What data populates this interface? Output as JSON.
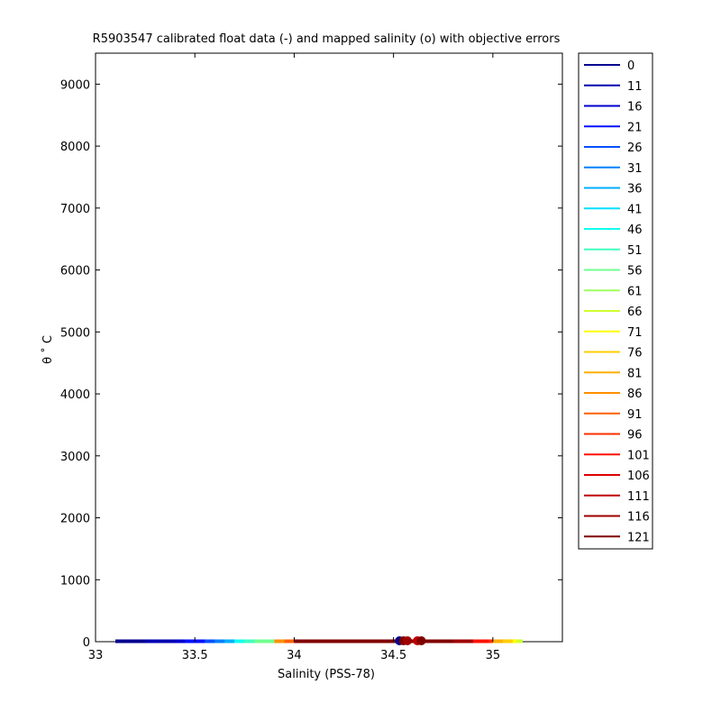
{
  "chart_data": {
    "type": "line",
    "title": "R5903547 calibrated float data (-) and mapped salinity (o) with objective errors",
    "xlabel": "Salinity (PSS-78)",
    "ylabel": "θ ˚ C",
    "xlim": [
      33.0,
      35.35
    ],
    "ylim": [
      0,
      9500
    ],
    "xticks": [
      {
        "value": 33,
        "label": "33"
      },
      {
        "value": 33.5,
        "label": "33.5"
      },
      {
        "value": 34,
        "label": "34"
      },
      {
        "value": 34.5,
        "label": "34.5"
      },
      {
        "value": 35,
        "label": "35"
      }
    ],
    "yticks": [
      {
        "value": 0,
        "label": "0"
      },
      {
        "value": 1000,
        "label": "1000"
      },
      {
        "value": 2000,
        "label": "2000"
      },
      {
        "value": 3000,
        "label": "3000"
      },
      {
        "value": 4000,
        "label": "4000"
      },
      {
        "value": 5000,
        "label": "5000"
      },
      {
        "value": 6000,
        "label": "6000"
      },
      {
        "value": 7000,
        "label": "7000"
      },
      {
        "value": 8000,
        "label": "8000"
      },
      {
        "value": 9000,
        "label": "9000"
      }
    ],
    "grid": false,
    "legend_position": "outside-right",
    "series": [
      {
        "name": "0",
        "color": "#00008f",
        "salinity_range": [
          33.1,
          33.55
        ],
        "theta": 8
      },
      {
        "name": "11",
        "color": "#0000af",
        "salinity_range": [
          33.25,
          33.6
        ],
        "theta": 8
      },
      {
        "name": "16",
        "color": "#0000cf",
        "salinity_range": [
          33.4,
          33.6
        ],
        "theta": 8
      },
      {
        "name": "21",
        "color": "#0010ff",
        "salinity_range": [
          33.45,
          33.65
        ],
        "theta": 8
      },
      {
        "name": "26",
        "color": "#0050ff",
        "salinity_range": [
          33.55,
          33.7
        ],
        "theta": 8
      },
      {
        "name": "31",
        "color": "#0080ff",
        "salinity_range": [
          33.6,
          33.8
        ],
        "theta": 8
      },
      {
        "name": "36",
        "color": "#00afff",
        "salinity_range": [
          33.65,
          33.85
        ],
        "theta": 8
      },
      {
        "name": "41",
        "color": "#00dfff",
        "salinity_range": [
          33.7,
          33.9
        ],
        "theta": 8
      },
      {
        "name": "46",
        "color": "#10ffef",
        "salinity_range": [
          33.7,
          33.92
        ],
        "theta": 8
      },
      {
        "name": "51",
        "color": "#40ffbf",
        "salinity_range": [
          33.75,
          33.95
        ],
        "theta": 8
      },
      {
        "name": "56",
        "color": "#70ff8f",
        "salinity_range": [
          33.8,
          33.95
        ],
        "theta": 8
      },
      {
        "name": "61",
        "color": "#9fff60",
        "salinity_range": [
          35.05,
          35.12
        ],
        "theta": 8
      },
      {
        "name": "66",
        "color": "#cfff30",
        "salinity_range": [
          35.1,
          35.15
        ],
        "theta": 8
      },
      {
        "name": "71",
        "color": "#ffff00",
        "salinity_range": [
          35.05,
          35.12
        ],
        "theta": 8
      },
      {
        "name": "76",
        "color": "#ffcf00",
        "salinity_range": [
          35.0,
          35.1
        ],
        "theta": 8
      },
      {
        "name": "81",
        "color": "#ffaf00",
        "salinity_range": [
          34.95,
          35.05
        ],
        "theta": 8
      },
      {
        "name": "86",
        "color": "#ff8f00",
        "salinity_range": [
          33.9,
          34.0
        ],
        "theta": 8
      },
      {
        "name": "91",
        "color": "#ff6000",
        "salinity_range": [
          33.95,
          34.05
        ],
        "theta": 8
      },
      {
        "name": "96",
        "color": "#ff3000",
        "salinity_range": [
          34.9,
          35.0
        ],
        "theta": 8
      },
      {
        "name": "101",
        "color": "#ff1000",
        "salinity_range": [
          34.85,
          34.98
        ],
        "theta": 8
      },
      {
        "name": "106",
        "color": "#df0000",
        "salinity_range": [
          34.0,
          34.9
        ],
        "theta": 8
      },
      {
        "name": "111",
        "color": "#bf0000",
        "salinity_range": [
          34.05,
          34.85
        ],
        "theta": 8
      },
      {
        "name": "116",
        "color": "#9f0000",
        "salinity_range": [
          34.0,
          34.9
        ],
        "theta": 8
      },
      {
        "name": "121",
        "color": "#800000",
        "salinity_range": [
          34.0,
          34.8
        ],
        "theta": 8
      }
    ],
    "mapped_points": [
      {
        "salinity": 34.53,
        "theta": 0,
        "color": "#00008f"
      },
      {
        "salinity": 34.55,
        "theta": 0,
        "color": "#800000"
      },
      {
        "salinity": 34.57,
        "theta": 0,
        "color": "#9f0000"
      },
      {
        "salinity": 34.62,
        "theta": 0,
        "color": "#bf0000"
      },
      {
        "salinity": 34.64,
        "theta": 0,
        "color": "#800000"
      }
    ]
  }
}
